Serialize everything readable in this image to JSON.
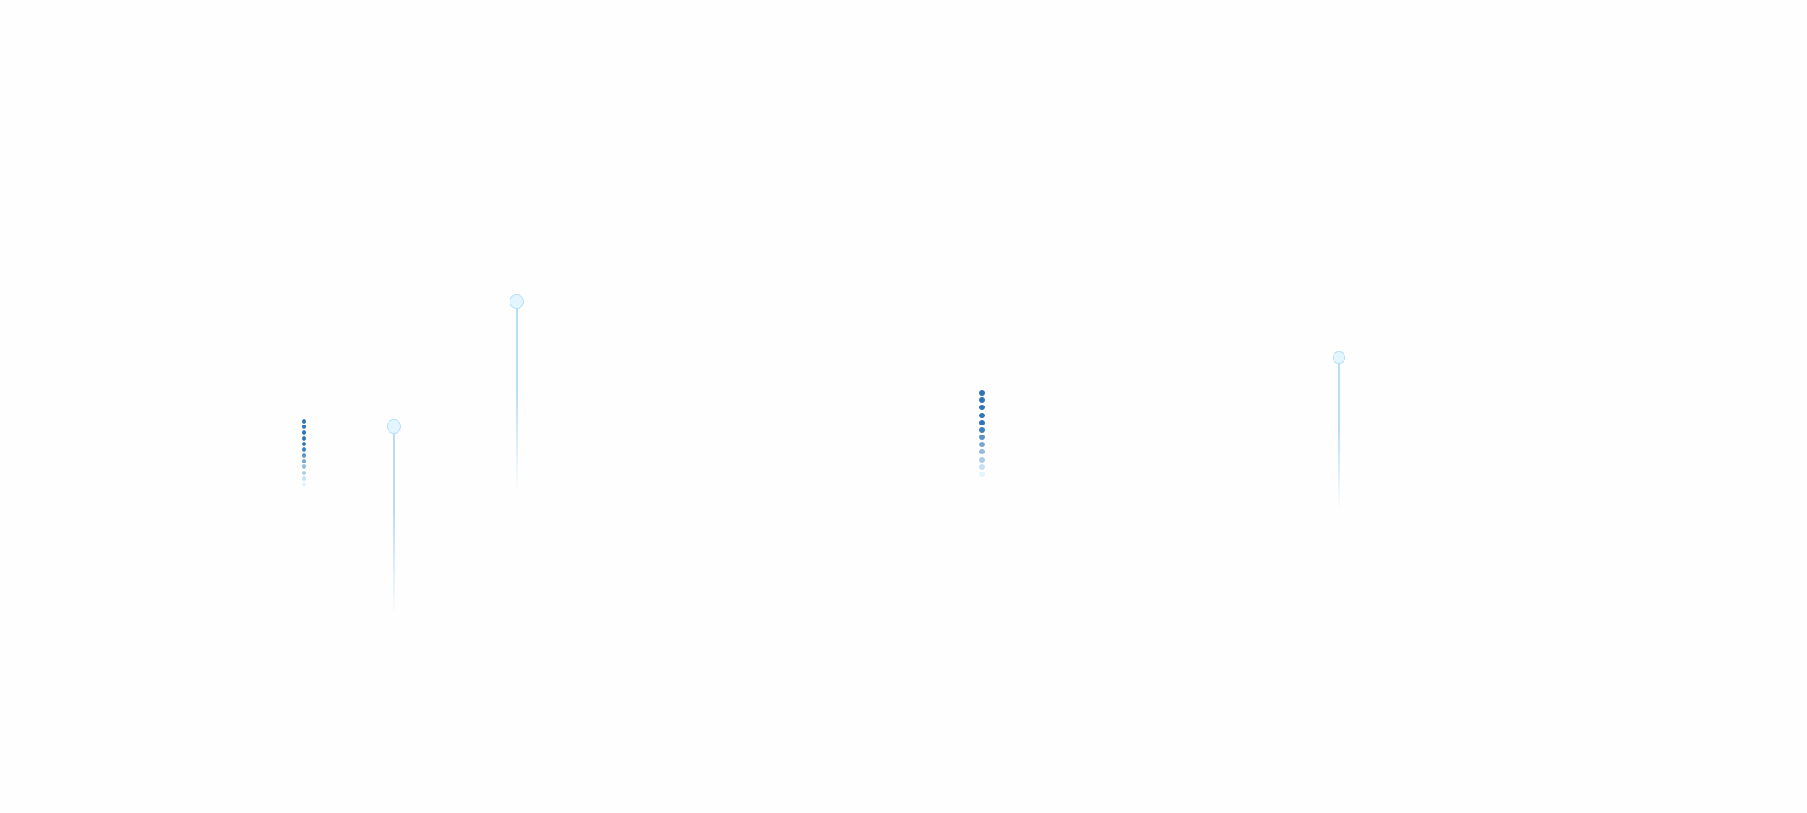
{
  "colors": {
    "background": "#fefefe",
    "dot_dark": "#2f74b5",
    "dot_light": "#e3f4fc",
    "pin_fill": "#e3f5fd",
    "pin_border": "#b5e0f5",
    "pin_line": "#b9dcf2"
  },
  "dot_columns": [
    {
      "count": 12,
      "icon": "loading-dots-icon"
    },
    {
      "count": 12,
      "icon": "loading-dots-icon"
    }
  ],
  "pins": [
    {
      "icon": "pin-marker-icon"
    },
    {
      "icon": "pin-marker-icon"
    },
    {
      "icon": "pin-marker-icon"
    }
  ]
}
